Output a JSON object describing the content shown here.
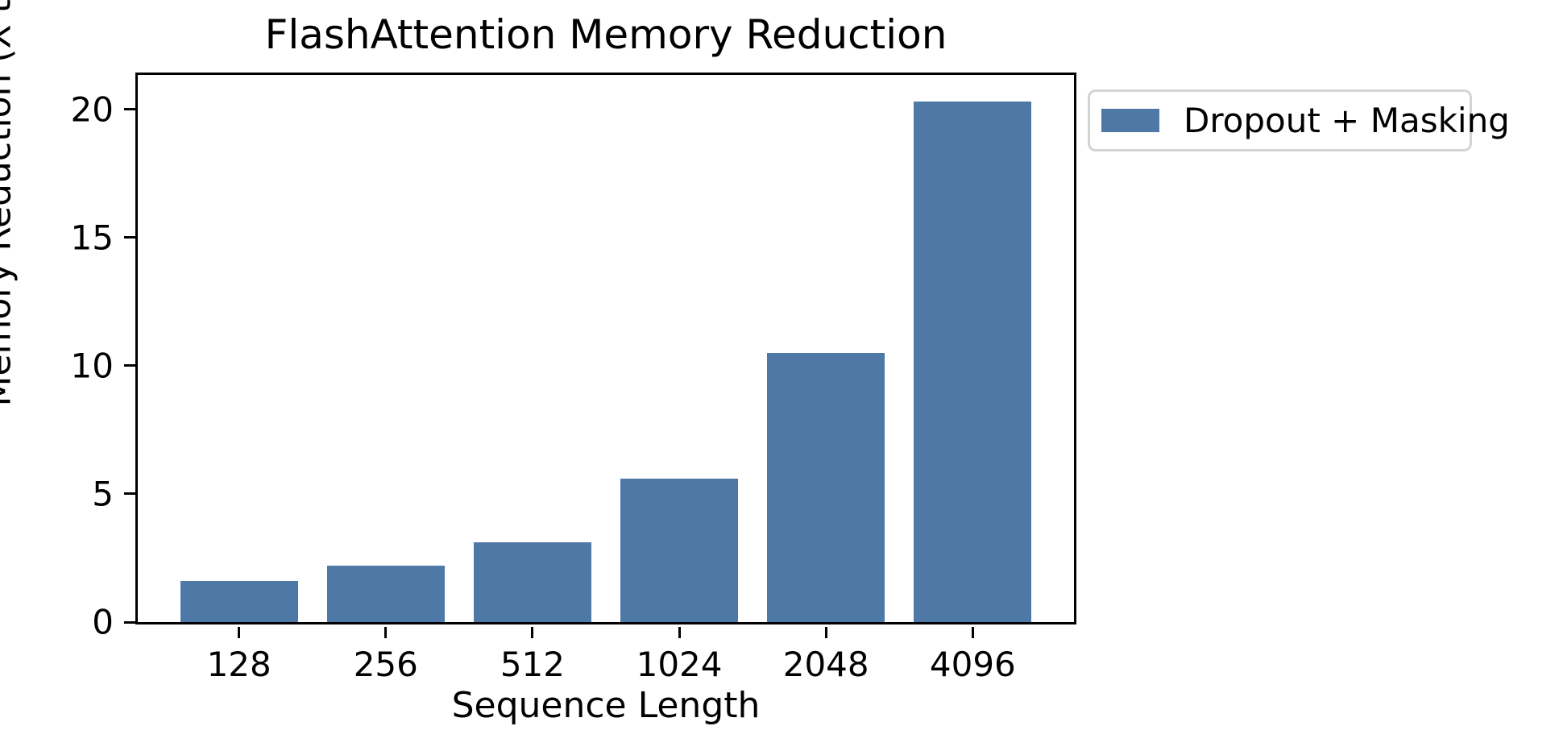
{
  "chart_data": {
    "type": "bar",
    "title": "FlashAttention Memory Reduction",
    "xlabel": "Sequence Length",
    "ylabel": "Memory Reduction (X times less)",
    "categories": [
      "128",
      "256",
      "512",
      "1024",
      "2048",
      "4096"
    ],
    "series": [
      {
        "name": "Dropout + Masking",
        "values": [
          1.6,
          2.2,
          3.1,
          5.6,
          10.5,
          20.3
        ]
      }
    ],
    "bar_color": "#4E79A7",
    "ylim": [
      0,
      21.35
    ],
    "yticks": [
      0,
      5,
      10,
      15,
      20
    ],
    "xlim": [
      -0.69,
      5.69
    ],
    "bar_width": 0.8,
    "grid": false,
    "legend": {
      "position": "outside-upper-right",
      "entries": [
        "Dropout + Masking"
      ]
    }
  }
}
